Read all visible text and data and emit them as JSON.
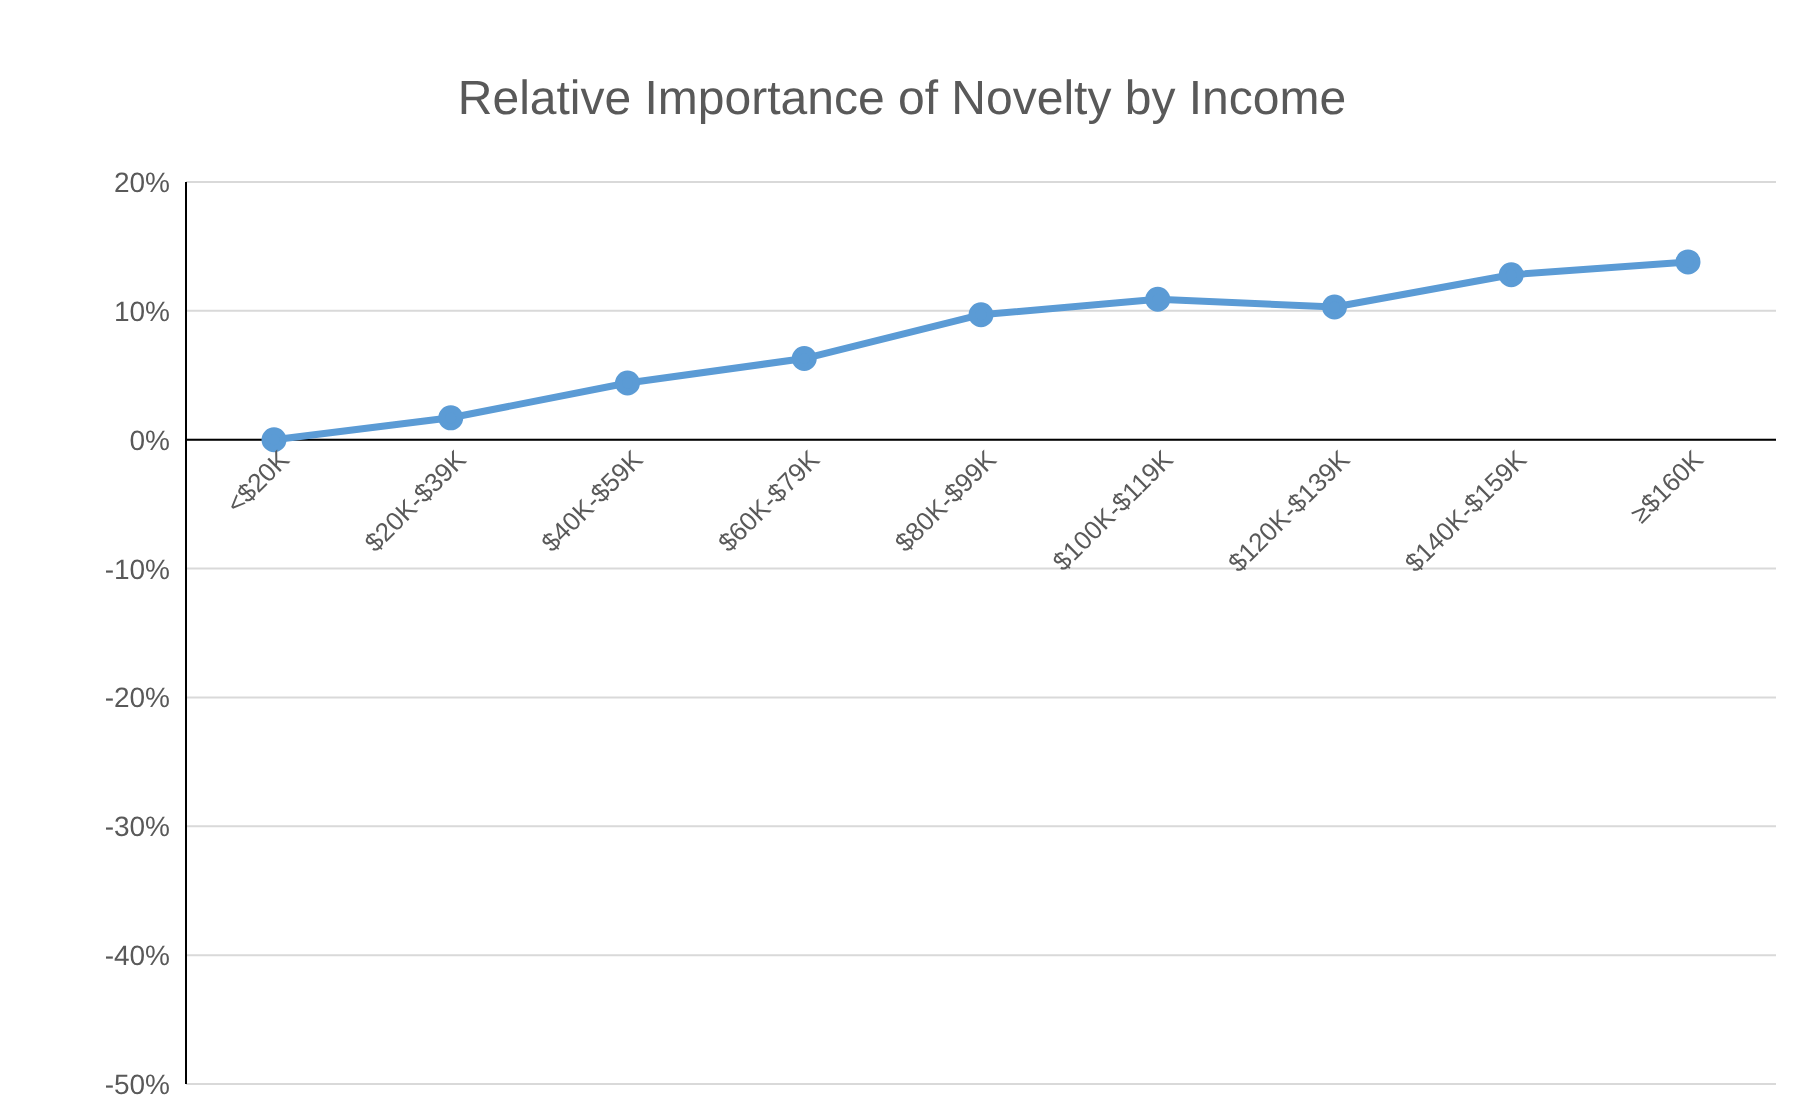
{
  "chart_data": {
    "type": "line",
    "title": "Relative Importance of Novelty by Income",
    "categories": [
      "<$20K",
      "$20K-$39K",
      "$40K-$59K",
      "$60K-$79K",
      "$80K-$99K",
      "$100K-$119K",
      "$120K-$139K",
      "$140K-$159K",
      "≥$160K"
    ],
    "series": [
      {
        "color": "#5b9bd5",
        "values": [
          0,
          1.7,
          4.4,
          6.3,
          9.7,
          10.9,
          10.3,
          12.8,
          13.8
        ]
      }
    ],
    "ylim": [
      -50,
      20
    ],
    "yticks": [
      {
        "value": -50,
        "label": "-50%"
      },
      {
        "value": -40,
        "label": "-40%"
      },
      {
        "value": -30,
        "label": "-30%"
      },
      {
        "value": -20,
        "label": "-20%"
      },
      {
        "value": -10,
        "label": "-10%"
      },
      {
        "value": 0,
        "label": "0%"
      },
      {
        "value": 10,
        "label": "10%"
      },
      {
        "value": 20,
        "label": "20%"
      }
    ],
    "grid": "y",
    "marker": "circle",
    "line_style": "solid"
  }
}
